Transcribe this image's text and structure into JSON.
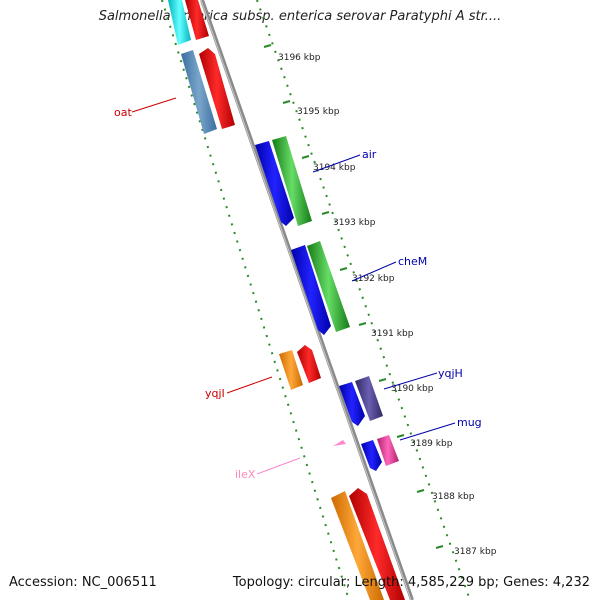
{
  "title": "Salmonella enterica subsp. enterica serovar Paratyphi A str....",
  "footer": {
    "accession": "Accession: NC_006511",
    "topology": "Topology: circular; Length: 4,585,229 bp; Genes: 4,232"
  },
  "ticks": [
    {
      "label": "3196 kbp"
    },
    {
      "label": "3195 kbp"
    },
    {
      "label": "3194 kbp"
    },
    {
      "label": "3193 kbp"
    },
    {
      "label": "3192 kbp"
    },
    {
      "label": "3191 kbp"
    },
    {
      "label": "3190 kbp"
    },
    {
      "label": "3189 kbp"
    },
    {
      "label": "3188 kbp"
    },
    {
      "label": "3187 kbp"
    }
  ],
  "gene_labels": [
    {
      "name": "oat",
      "color": "#cc0000"
    },
    {
      "name": "air",
      "color": "#0000aa"
    },
    {
      "name": "cheM",
      "color": "#0000aa"
    },
    {
      "name": "yqjI",
      "color": "#cc0000"
    },
    {
      "name": "yqjH",
      "color": "#0000aa"
    },
    {
      "name": "mug",
      "color": "#0000aa"
    },
    {
      "name": "ileX",
      "color": "#ff88bb"
    }
  ],
  "colors": {
    "backbone": "#8a8a8a",
    "tick_dots": "#2a8a2a",
    "cyan": "#00e5ee",
    "red": "#ee0000",
    "steelblue": "#4682b4",
    "blue": "#0000ee",
    "green": "#22aa22",
    "orange": "#ff8c00",
    "slateblue": "#483d8b",
    "magenta": "#ee3399",
    "pink": "#ff88cc"
  }
}
